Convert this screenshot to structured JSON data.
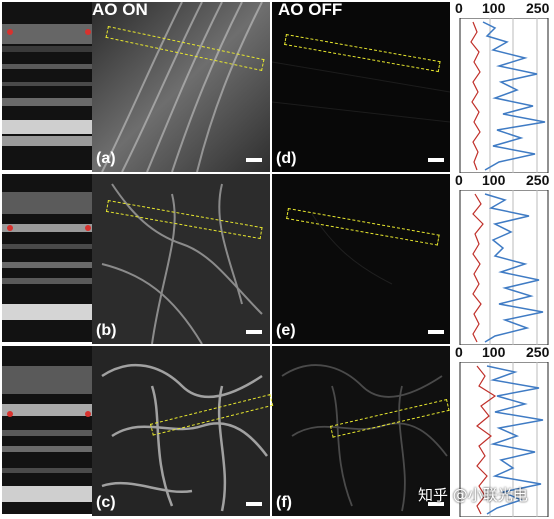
{
  "columns": {
    "ao_on": "AO ON",
    "ao_off": "AO OFF"
  },
  "panels": [
    {
      "label": "(a)"
    },
    {
      "label": "(d)"
    },
    {
      "label": "(b)"
    },
    {
      "label": "(e)"
    },
    {
      "label": "(c)"
    },
    {
      "label": "(f)"
    }
  ],
  "profile_axis": {
    "ticks": [
      "0",
      "100",
      "250"
    ]
  },
  "colors": {
    "roi": "#e6e62e",
    "profile_on": "#3f7bc4",
    "profile_off": "#c0302a",
    "marker": "#d8322e"
  },
  "watermark": "知乎 @小联光电"
}
